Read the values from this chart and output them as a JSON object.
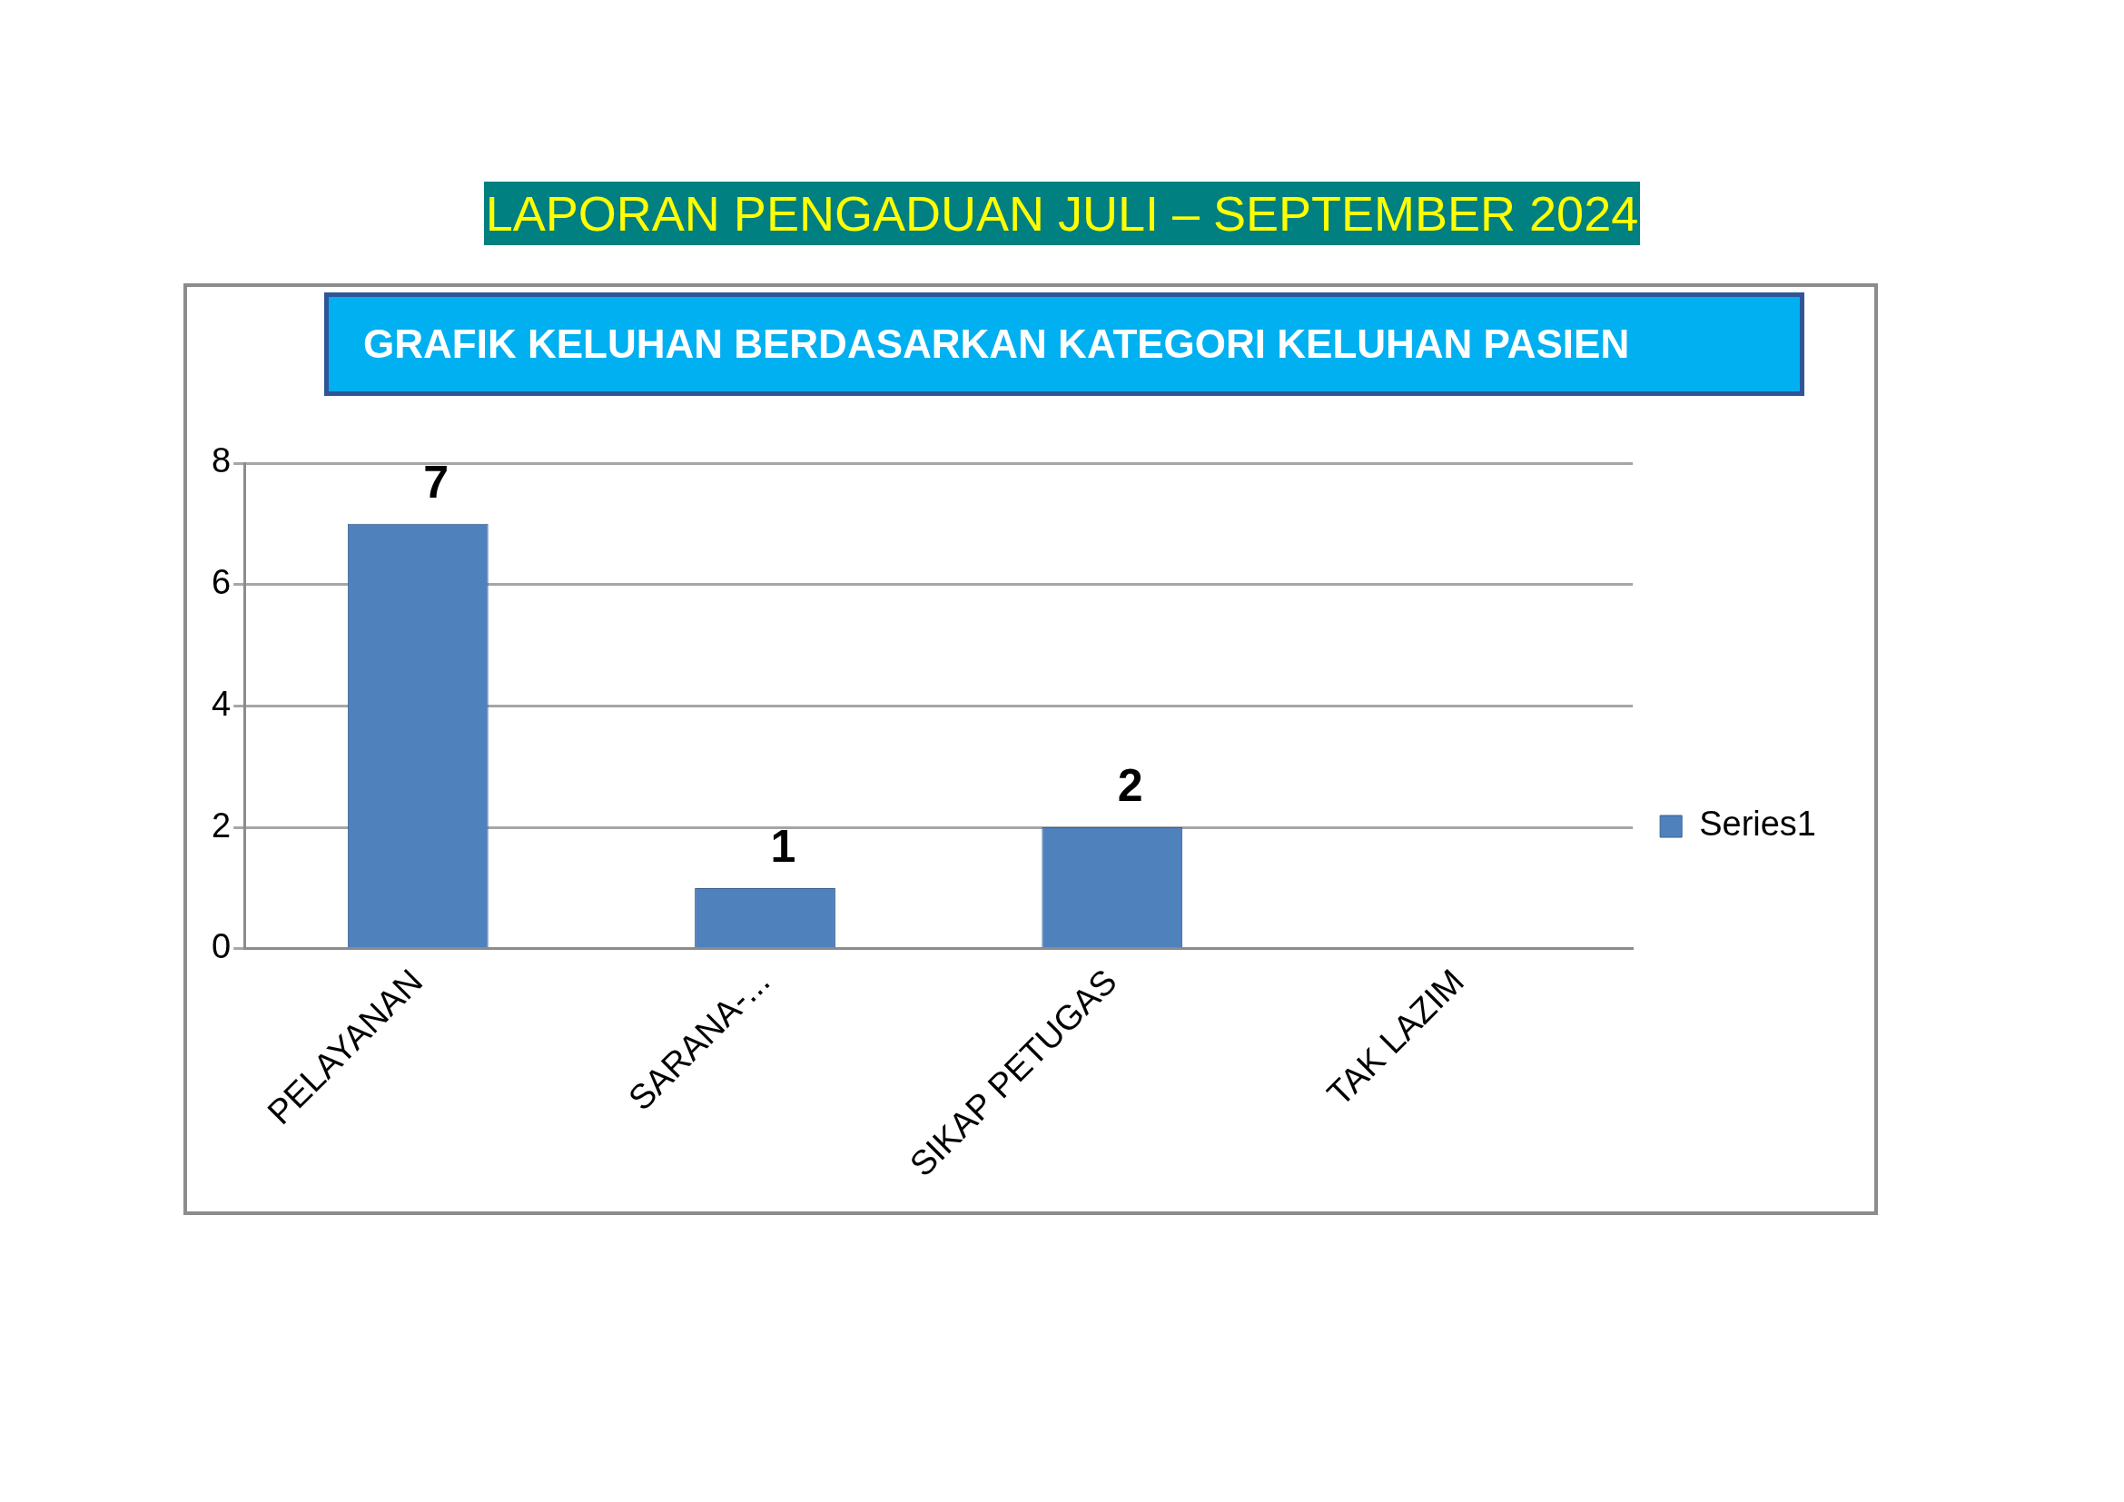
{
  "chart_data": {
    "type": "bar",
    "title": "LAPORAN PENGADUAN JULI – SEPTEMBER 2024",
    "subtitle": "GRAFIK KELUHAN BERDASARKAN KATEGORI KELUHAN PASIEN",
    "categories": [
      "PELAYANAN",
      "SARANA-...",
      "SIKAP PETUGAS",
      "TAK LAZIM"
    ],
    "series": [
      {
        "name": "Series1",
        "color": "#4f81bd",
        "values": [
          7,
          1,
          2,
          0
        ],
        "value_labels": [
          "7",
          "1",
          "2",
          null
        ]
      }
    ],
    "ylim": [
      0,
      8
    ],
    "yticks": [
      0,
      2,
      4,
      6,
      8
    ],
    "grid": "y",
    "legend": "right"
  }
}
